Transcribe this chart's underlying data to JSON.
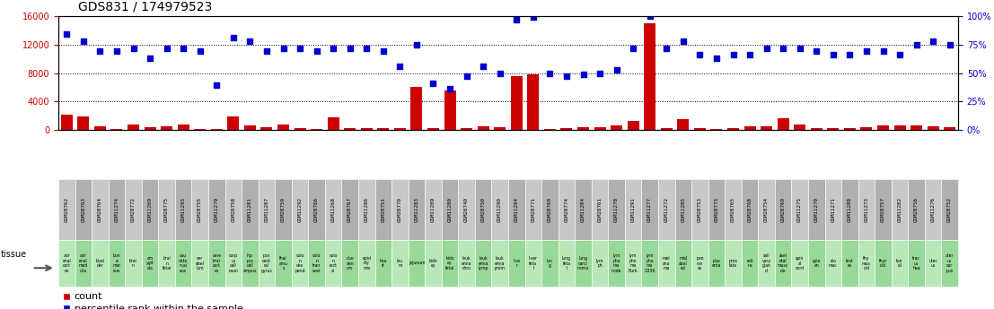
{
  "title": "GDS831 / 174979523",
  "samples": [
    "GSM28762",
    "GSM28763",
    "GSM28764",
    "GSM11274",
    "GSM28772",
    "GSM11269",
    "GSM28775",
    "GSM11293",
    "GSM28755",
    "GSM11279",
    "GSM28758",
    "GSM11281",
    "GSM11287",
    "GSM28759",
    "GSM11292",
    "GSM28766",
    "GSM11268",
    "GSM28767",
    "GSM11286",
    "GSM28751",
    "GSM28770",
    "GSM11283",
    "GSM11289",
    "GSM11280",
    "GSM28749",
    "GSM28750",
    "GSM11290",
    "GSM11294",
    "GSM28771",
    "GSM28760",
    "GSM28774",
    "GSM11284",
    "GSM28761",
    "GSM11278",
    "GSM11291",
    "GSM11277",
    "GSM11272",
    "GSM11285",
    "GSM28753",
    "GSM28773",
    "GSM28765",
    "GSM28768",
    "GSM28754",
    "GSM28769",
    "GSM11275",
    "GSM11270",
    "GSM11271",
    "GSM11288",
    "GSM11273",
    "GSM28757",
    "GSM11282",
    "GSM28756",
    "GSM11276",
    "GSM28752"
  ],
  "tissue_labels": [
    "adr\nenal\ncort\nex",
    "adr\nenal\nmed\nulla",
    "blad\nder",
    "bon\ne\nmar\nrow",
    "brai\nn",
    "am\nygd\nala",
    "brai\nn\nfetal",
    "cau\ndate\nnucl\neus",
    "cer\nebel\nlum",
    "cere\nbral\ncort\nex",
    "corp\nus\ncall\nosun",
    "hip\npoc\ncall\nampus",
    "pos\ncent\nral\ngyrus",
    "thal\namu\ns",
    "colo\nn\ndes\npend",
    "colo\nn\ntran\nsver",
    "colo\nn\nrect\nal",
    "duo\nden\num",
    "epid\nidy\nmis",
    "hea\nrt",
    "leu\nm",
    "jejunum",
    "kidn\ney",
    "kidn\ney\nfetal",
    "leuk\nemia\nchro",
    "leuk\nemia\nlymp",
    "leuk\nemia\nprom",
    "live\nr",
    "liver\nfeta\nl",
    "lun\ng",
    "lung\nfeta\nl",
    "lung\ncarci\nnoma",
    "lym\nph",
    "lym\npho\nma\nnode",
    "lym\npho\nma\nBurk",
    "lym\npho\nma\nG336",
    "mel\nano\nma",
    "misl\nabel\ned",
    "pan\ncre\nas",
    "plac\nenta",
    "pros\ntate",
    "reti\nna",
    "sali\nvary\nglan\nd",
    "skel\netal\nmusc\ncle",
    "spin\nal\ncord",
    "sple\nen",
    "sto\nmac",
    "test\nes",
    "thy\nmus\noid",
    "thyr\noid",
    "ton\nsil",
    "trac\nus\nhea",
    "uter\nus",
    "uter\nus\ncor\npus"
  ],
  "count_values": [
    2200,
    1900,
    500,
    100,
    700,
    400,
    450,
    800,
    100,
    150,
    1900,
    600,
    400,
    800,
    250,
    100,
    1800,
    300,
    200,
    200,
    200,
    6000,
    200,
    5500,
    300,
    450,
    350,
    7500,
    7800,
    100,
    200,
    350,
    400,
    600,
    1200,
    15000,
    300,
    1500,
    250,
    150,
    300,
    500,
    550,
    1700,
    700,
    300,
    250,
    200,
    400,
    650,
    650,
    650,
    450,
    350
  ],
  "percentile_values_pct": [
    84,
    78,
    69,
    69,
    72,
    63,
    72,
    72,
    69,
    39,
    81,
    78,
    69,
    72,
    72,
    69,
    72,
    72,
    72,
    69,
    56,
    75,
    41,
    36,
    47,
    56,
    50,
    97,
    99,
    50,
    47,
    49,
    50,
    53,
    72,
    100,
    72,
    78,
    66,
    63,
    66,
    66,
    72,
    72,
    72,
    69,
    66,
    66,
    69,
    69,
    66,
    75,
    78,
    75
  ],
  "ylim_left": [
    0,
    16000
  ],
  "ylim_right": [
    0,
    100
  ],
  "yticks_left": [
    0,
    4000,
    8000,
    12000,
    16000
  ],
  "yticks_right": [
    0,
    25,
    50,
    75,
    100
  ],
  "bar_color": "#cc0000",
  "dot_color": "#0000cc",
  "sample_bg_light": "#c8c8c8",
  "sample_bg_dark": "#b0b0b0",
  "tissue_bg_light": "#b8e8b8",
  "tissue_bg_dark": "#98d898",
  "title_fontsize": 10,
  "tick_fontsize": 7,
  "legend_fontsize": 8
}
